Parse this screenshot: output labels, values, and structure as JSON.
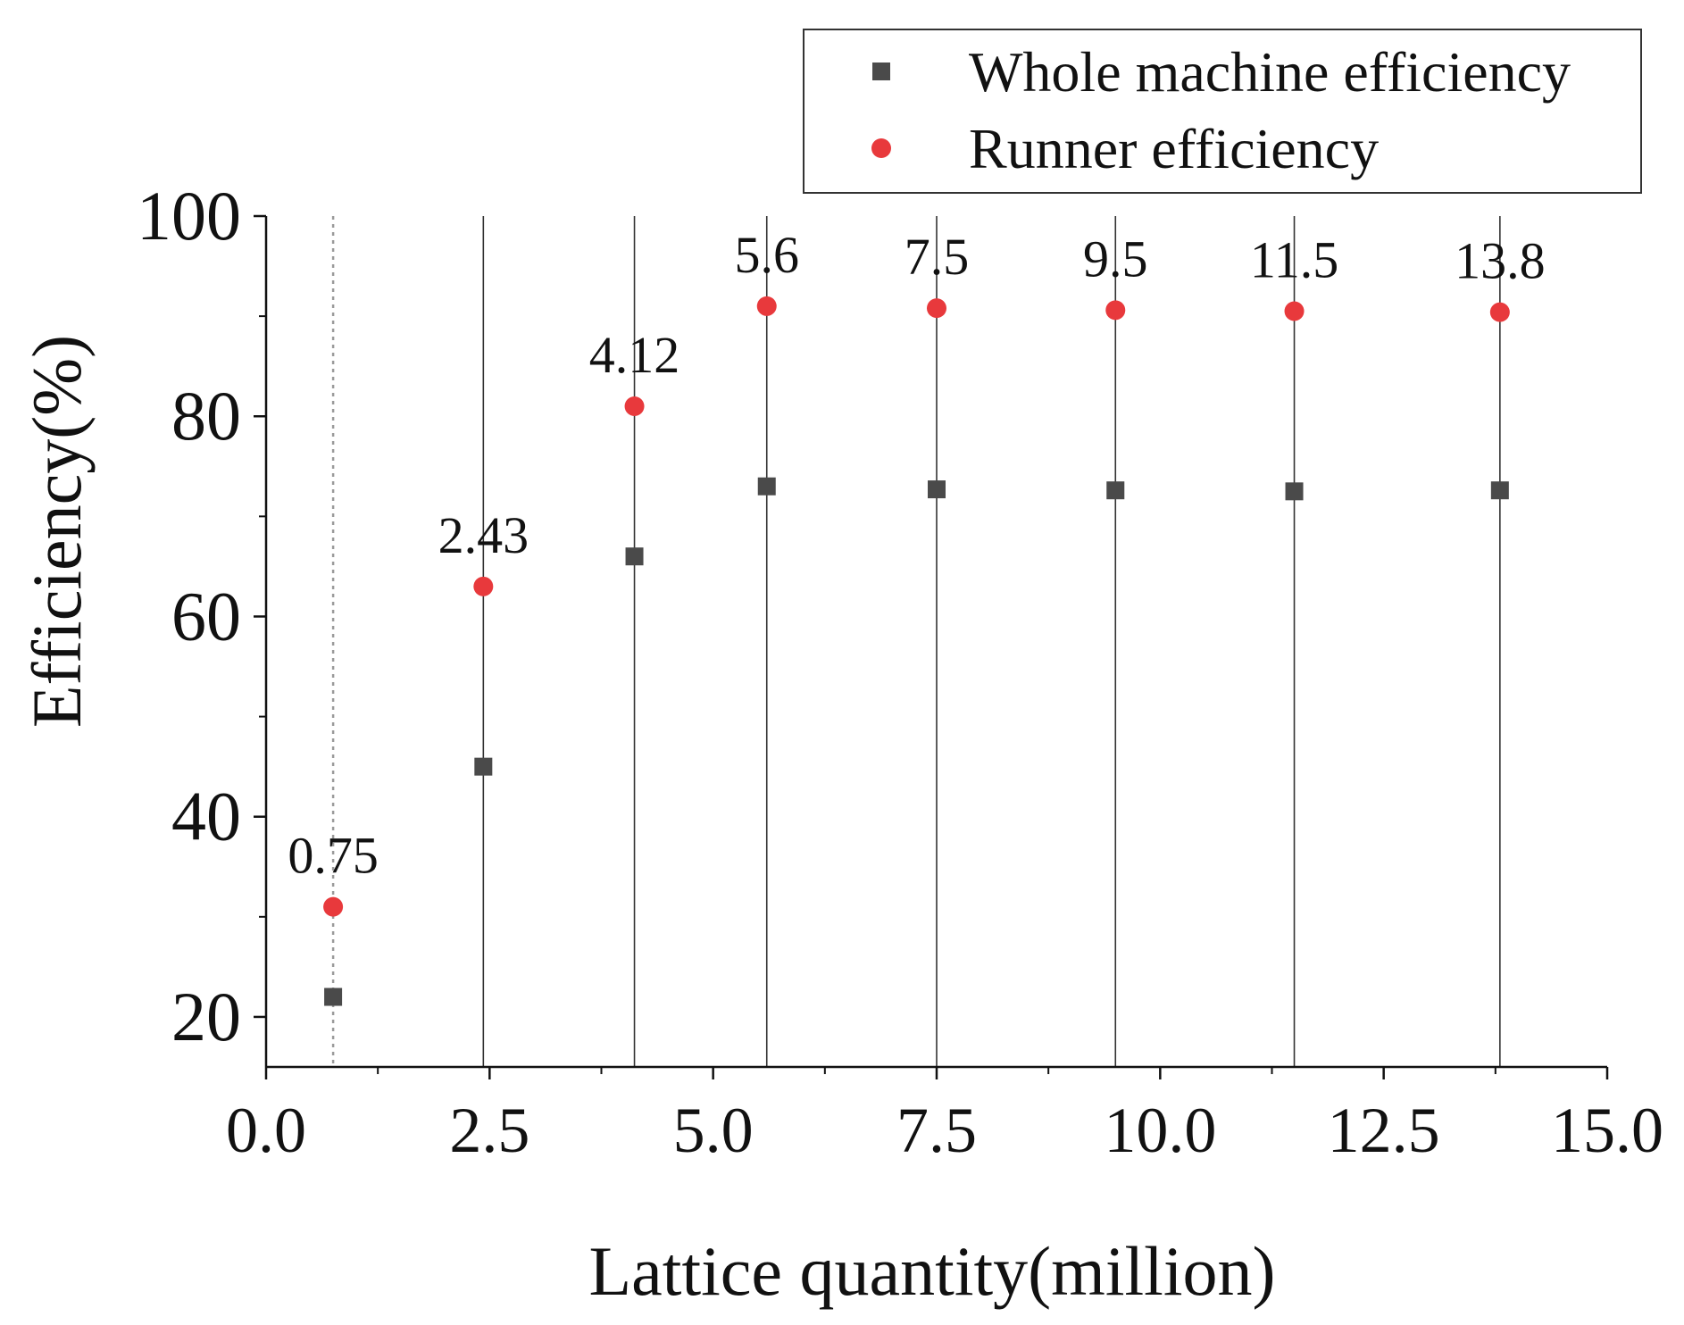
{
  "chart_data": {
    "type": "scatter",
    "xlabel": "Lattice quantity(million)",
    "ylabel": "Efficiency(%)",
    "xlim": [
      0,
      15
    ],
    "ylim": [
      15,
      100
    ],
    "xticks": [
      "0.0",
      "2.5",
      "5.0",
      "7.5",
      "10.0",
      "12.5",
      "15.0"
    ],
    "xtick_values": [
      0,
      2.5,
      5,
      7.5,
      10,
      12.5,
      15
    ],
    "yticks": [
      "20",
      "40",
      "60",
      "80",
      "100"
    ],
    "ytick_values": [
      20,
      40,
      60,
      80,
      100
    ],
    "x": [
      0.75,
      2.43,
      4.12,
      5.6,
      7.5,
      9.5,
      11.5,
      13.8
    ],
    "point_labels": [
      "0.75",
      "2.43",
      "4.12",
      "5.6",
      "7.5",
      "9.5",
      "11.5",
      "13.8"
    ],
    "series": [
      {
        "name": "Whole machine efficiency",
        "marker": "square",
        "color": "#4a4a4a",
        "values": [
          22,
          45,
          66,
          73,
          72.7,
          72.6,
          72.5,
          72.6
        ]
      },
      {
        "name": "Runner efficiency",
        "marker": "circle",
        "color": "#e8393c",
        "values": [
          31,
          63,
          81,
          91,
          90.8,
          90.6,
          90.5,
          90.4
        ]
      }
    ],
    "reference_lines": {
      "first_style": "dotted",
      "first_color": "#9a9a9a",
      "other_color": "#333333"
    },
    "legend_position": "top-right",
    "grid": false
  }
}
